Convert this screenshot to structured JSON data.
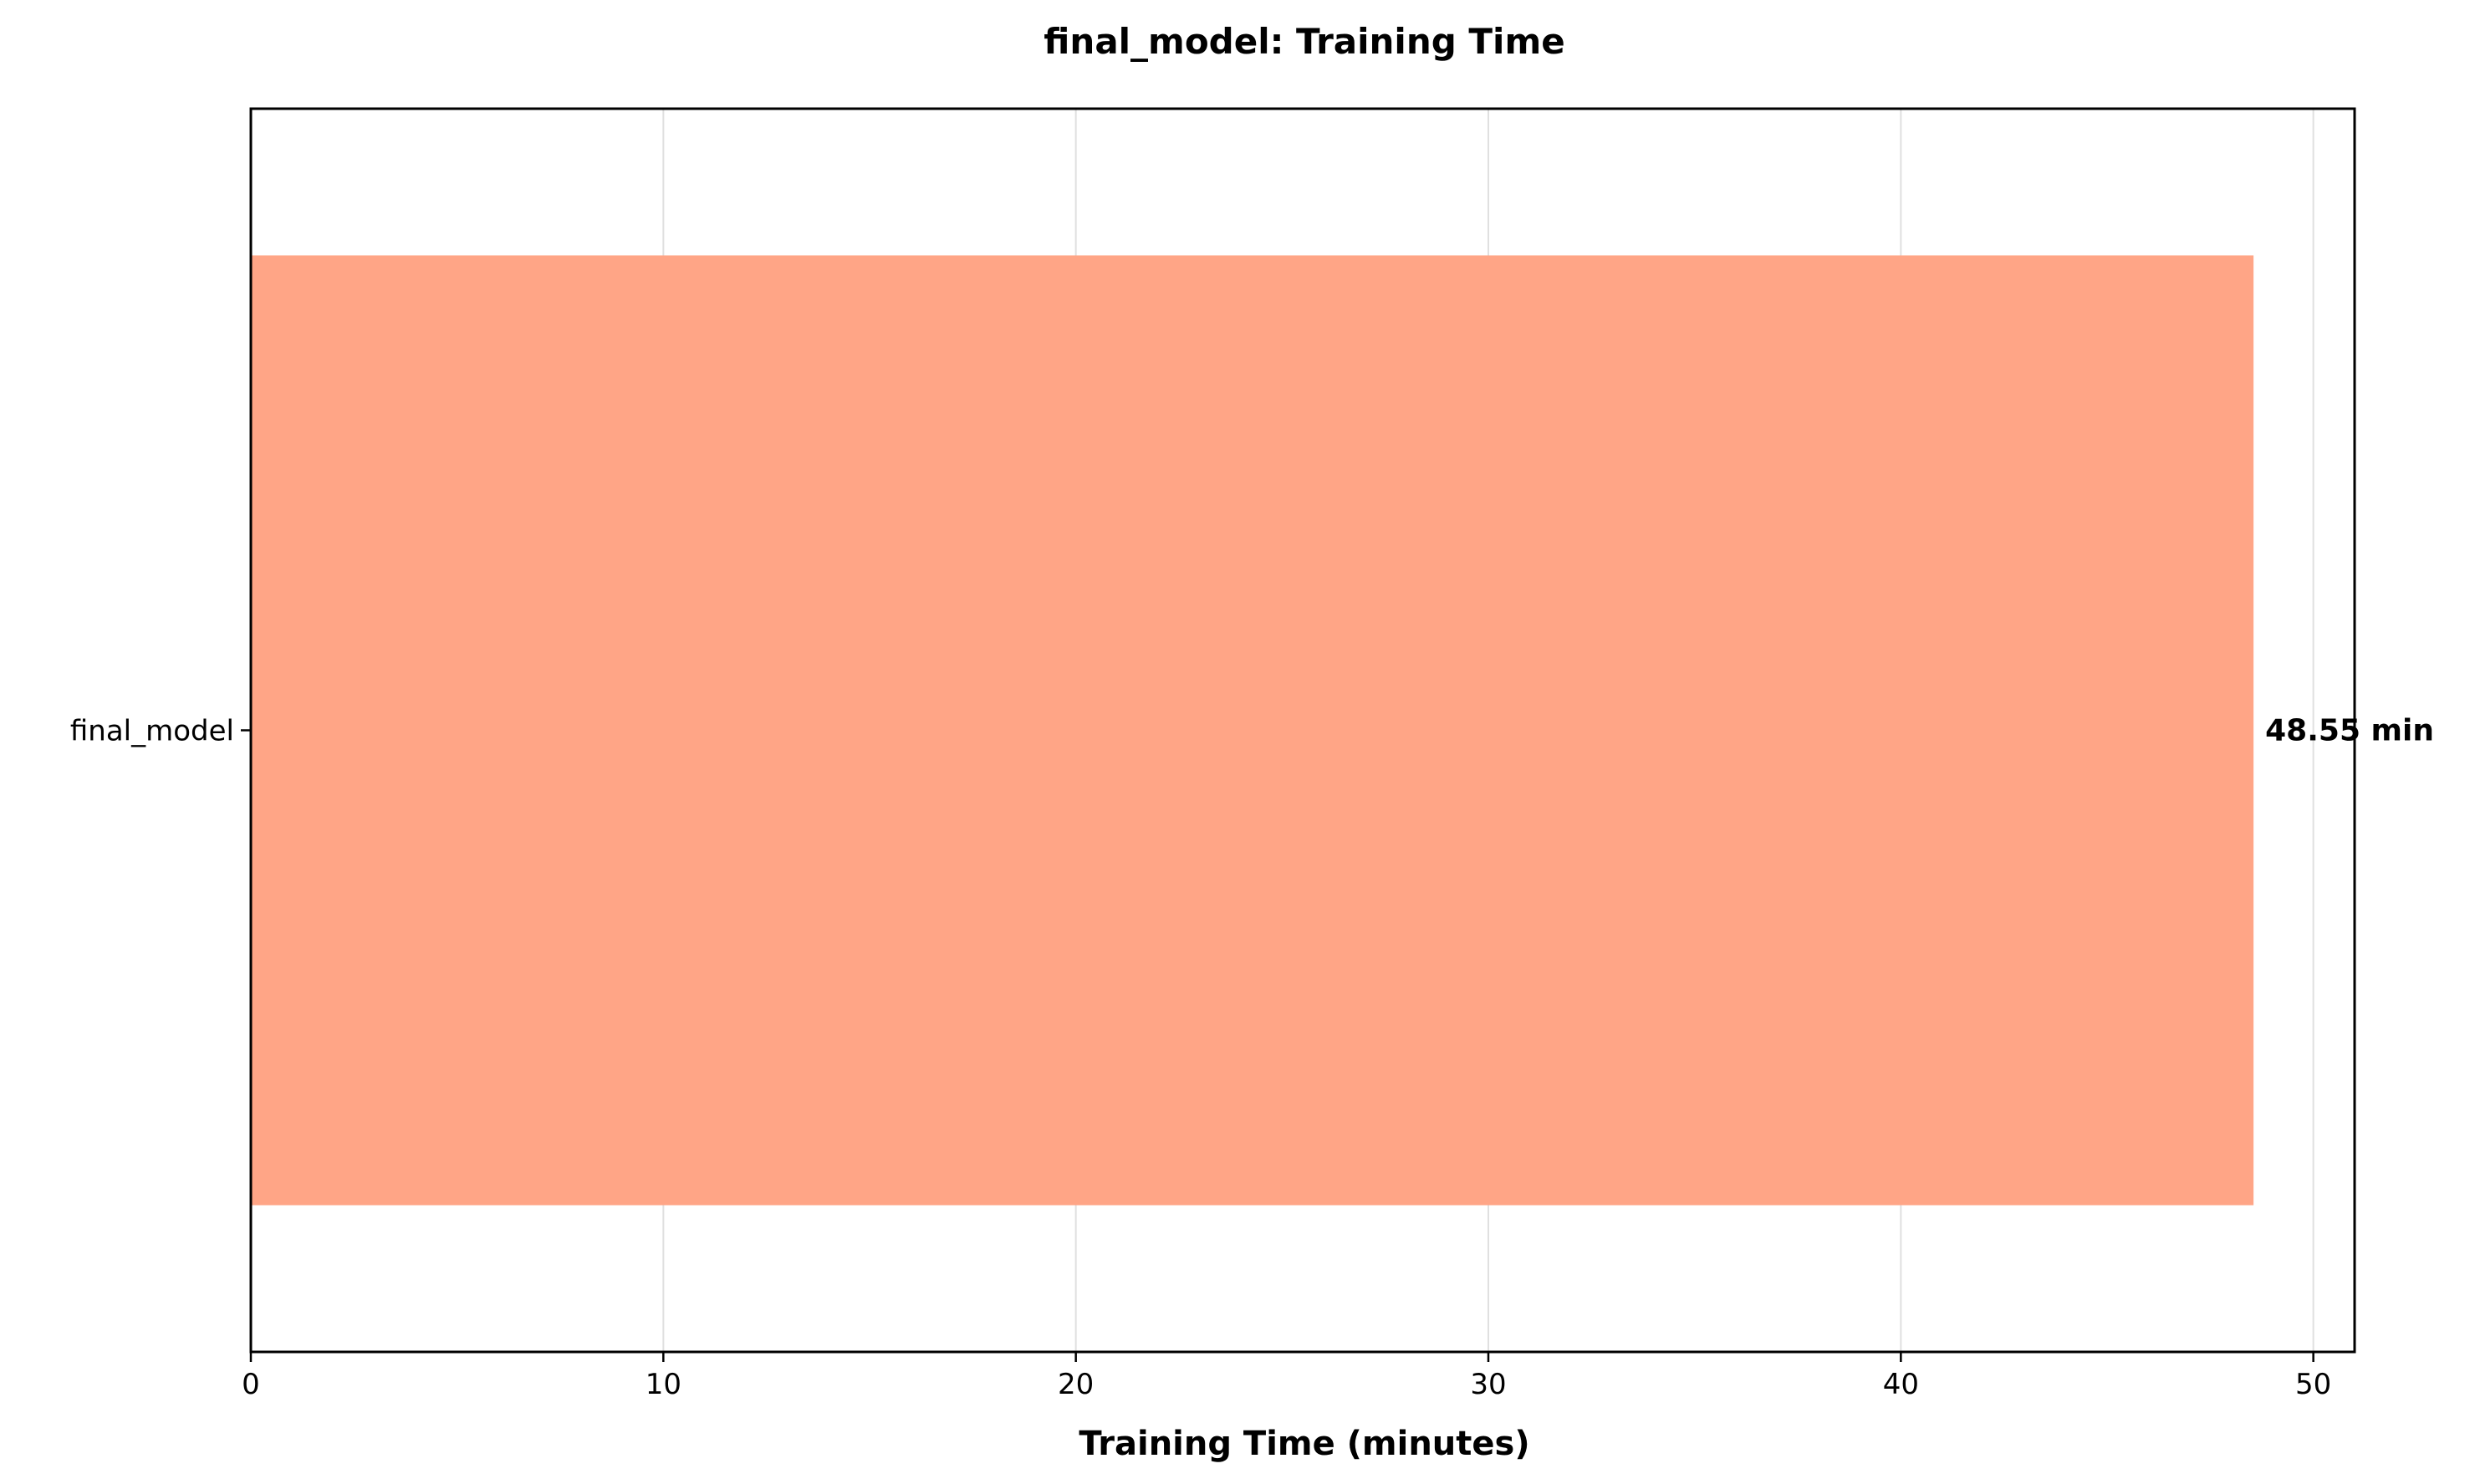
{
  "chart_data": {
    "type": "bar",
    "orientation": "horizontal",
    "title": "final_model: Training Time",
    "xlabel": "Training Time (minutes)",
    "ylabel": "",
    "categories": [
      "final_model"
    ],
    "values": [
      48.55
    ],
    "data_labels": [
      "48.55 min"
    ],
    "xlim": [
      0,
      51
    ],
    "xticks": [
      0,
      10,
      20,
      30,
      40,
      50
    ],
    "xtick_labels": [
      "0",
      "10",
      "20",
      "30",
      "40",
      "50"
    ],
    "grid": "vertical",
    "legend": "none",
    "bar_color": "#ffa586",
    "grid_color": "#e0e0e0"
  }
}
